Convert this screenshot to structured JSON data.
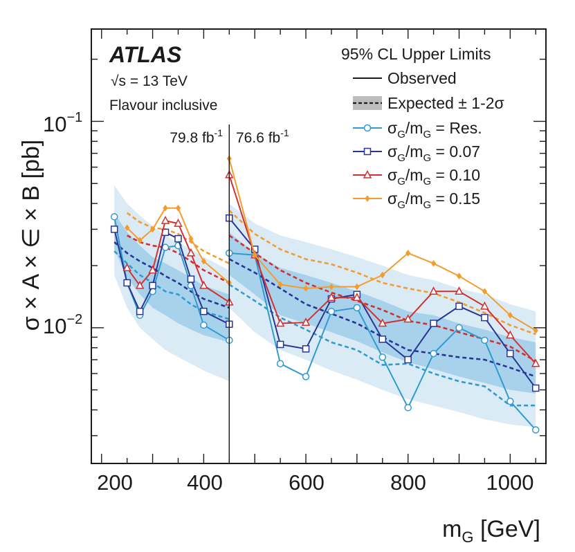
{
  "chart_data": {
    "type": "line",
    "title": "",
    "experiment": "ATLAS",
    "energy": "√s = 13 TeV",
    "selection": "Flavour inclusive",
    "xlabel": "m_G [GeV]",
    "ylabel": "σ × A × ∈ × B [pb]",
    "xlim": [
      180,
      1070
    ],
    "ylim": [
      0.0022,
      0.28
    ],
    "yscale": "log",
    "x_ticks": [
      200,
      400,
      600,
      800,
      1000
    ],
    "y_ticks": [
      {
        "value": 0.1,
        "base": "10",
        "exp": "−1"
      },
      {
        "value": 0.01,
        "base": "10",
        "exp": "−2"
      }
    ],
    "luminosity_boundary": 450,
    "lumi_left": {
      "value": "79.8 fb",
      "unit_exp": "-1"
    },
    "lumi_right": {
      "value": "76.6 fb",
      "unit_exp": "-1"
    },
    "legend": {
      "header": "95% CL Upper Limits",
      "entries": [
        {
          "id": "observed",
          "label": "Observed"
        },
        {
          "id": "expected",
          "label": "Expected ± 1-2σ"
        },
        {
          "id": "res",
          "sym": "σ",
          "sub1": "G",
          "mid": "/m",
          "sub2": "G",
          "rest": " = Res."
        },
        {
          "id": "w07",
          "sym": "σ",
          "sub1": "G",
          "mid": "/m",
          "sub2": "G",
          "rest": " = 0.07"
        },
        {
          "id": "w10",
          "sym": "σ",
          "sub1": "G",
          "mid": "/m",
          "sub2": "G",
          "rest": " = 0.10"
        },
        {
          "id": "w15",
          "sym": "σ",
          "sub1": "G",
          "mid": "/m",
          "sub2": "G",
          "rest": " = 0.15"
        }
      ]
    },
    "bands": {
      "low_x": [
        225,
        250,
        275,
        300,
        325,
        350,
        375,
        400,
        450
      ],
      "high_x": [
        450,
        500,
        550,
        600,
        650,
        700,
        750,
        800,
        850,
        900,
        950,
        1000,
        1050
      ],
      "sigma2_color": "#daebf6",
      "sigma1_color": "#a8d2eb",
      "low_sigma2_up": [
        0.049,
        0.04,
        0.035,
        0.031,
        0.028,
        0.026,
        0.024,
        0.022,
        0.019
      ],
      "low_sigma1_up": [
        0.036,
        0.029,
        0.025,
        0.022,
        0.0205,
        0.019,
        0.0175,
        0.016,
        0.0145
      ],
      "low_sigma1_dn": [
        0.024,
        0.0175,
        0.0145,
        0.0125,
        0.0115,
        0.0105,
        0.0098,
        0.0092,
        0.0085
      ],
      "low_sigma2_dn": [
        0.018,
        0.0125,
        0.01,
        0.0088,
        0.0078,
        0.0072,
        0.0067,
        0.0062,
        0.0055
      ],
      "high_sigma2_up": [
        0.04,
        0.032,
        0.028,
        0.026,
        0.024,
        0.022,
        0.02,
        0.018,
        0.017,
        0.0155,
        0.0145,
        0.013,
        0.012
      ],
      "high_sigma1_up": [
        0.029,
        0.023,
        0.0195,
        0.018,
        0.0165,
        0.015,
        0.0135,
        0.012,
        0.0115,
        0.0105,
        0.0098,
        0.009,
        0.0085
      ],
      "high_sigma1_dn": [
        0.018,
        0.0145,
        0.0115,
        0.0105,
        0.0095,
        0.0086,
        0.0076,
        0.0068,
        0.0063,
        0.0058,
        0.0054,
        0.005,
        0.0048
      ],
      "high_sigma2_dn": [
        0.0125,
        0.0095,
        0.0078,
        0.007,
        0.0062,
        0.0056,
        0.005,
        0.0045,
        0.0042,
        0.0039,
        0.0036,
        0.0034,
        0.0033
      ]
    },
    "series": [
      {
        "id": "res",
        "name": "σG/mG = Res.",
        "color": "#2f9bcf",
        "marker": "circle",
        "obs_low_x": [
          225,
          250,
          275,
          300,
          325,
          350,
          375,
          400,
          450
        ],
        "obs_low_y": [
          0.0345,
          0.0165,
          0.0115,
          0.015,
          0.0245,
          0.025,
          0.016,
          0.0103,
          0.0087
        ],
        "obs_high_x": [
          450,
          500,
          550,
          600,
          650,
          700,
          750,
          800,
          850,
          900,
          950,
          1000,
          1050
        ],
        "obs_high_y": [
          0.023,
          0.0225,
          0.0067,
          0.0058,
          0.012,
          0.0125,
          0.0072,
          0.0041,
          0.0075,
          0.01,
          0.0087,
          0.0044,
          0.0032
        ],
        "exp_low_x": [
          225,
          250,
          275,
          300,
          325,
          350,
          375,
          400,
          450
        ],
        "exp_low_y": [
          0.0235,
          0.0205,
          0.018,
          0.0165,
          0.015,
          0.0145,
          0.013,
          0.012,
          0.011
        ],
        "exp_high_x": [
          450,
          500,
          550,
          600,
          650,
          700,
          750,
          800,
          850,
          900,
          950,
          1000,
          1050
        ],
        "exp_high_y": [
          0.0162,
          0.0135,
          0.0112,
          0.0098,
          0.0085,
          0.0078,
          0.0066,
          0.0067,
          0.006,
          0.0055,
          0.0052,
          0.0042,
          0.0042
        ]
      },
      {
        "id": "w07",
        "name": "σG/mG = 0.07",
        "color": "#283593",
        "marker": "square",
        "obs_low_x": [
          225,
          250,
          275,
          300,
          325,
          350,
          375,
          400,
          450
        ],
        "obs_low_y": [
          0.03,
          0.0165,
          0.012,
          0.016,
          0.029,
          0.027,
          0.0172,
          0.012,
          0.0104
        ],
        "obs_high_x": [
          450,
          500,
          550,
          600,
          650,
          700,
          750,
          800,
          850,
          900,
          950,
          1000,
          1050
        ],
        "obs_high_y": [
          0.034,
          0.024,
          0.0083,
          0.0079,
          0.0138,
          0.0145,
          0.0088,
          0.007,
          0.0105,
          0.0127,
          0.0112,
          0.0075,
          0.0051
        ],
        "exp_low_x": [
          225,
          250,
          275,
          300,
          325,
          350,
          375,
          400,
          450
        ],
        "exp_low_y": [
          0.026,
          0.023,
          0.021,
          0.0195,
          0.0178,
          0.0165,
          0.015,
          0.0138,
          0.0125
        ],
        "exp_high_x": [
          450,
          500,
          550,
          600,
          650,
          700,
          750,
          800,
          850,
          900,
          950,
          1000,
          1050
        ],
        "exp_high_y": [
          0.0215,
          0.0185,
          0.0155,
          0.013,
          0.0117,
          0.0105,
          0.009,
          0.0078,
          0.0075,
          0.0072,
          0.007,
          0.0064,
          0.0058
        ]
      },
      {
        "id": "w10",
        "name": "σG/mG = 0.10",
        "color": "#d32f2f",
        "marker": "triangle",
        "obs_low_x": [
          250,
          275,
          300,
          325,
          350,
          375,
          400,
          450
        ],
        "obs_low_y": [
          0.0195,
          0.016,
          0.019,
          0.033,
          0.032,
          0.023,
          0.016,
          0.0133
        ],
        "obs_high_x": [
          450,
          500,
          550,
          600,
          650,
          700,
          750,
          800,
          850,
          900,
          950,
          1000,
          1050
        ],
        "obs_high_y": [
          0.055,
          0.0225,
          0.0105,
          0.0106,
          0.014,
          0.014,
          0.0105,
          0.011,
          0.015,
          0.015,
          0.0127,
          0.0092,
          0.0067
        ],
        "exp_low_x": [
          250,
          275,
          300,
          325,
          350,
          375,
          400,
          450
        ],
        "exp_low_y": [
          0.028,
          0.026,
          0.025,
          0.0245,
          0.023,
          0.021,
          0.019,
          0.0165
        ],
        "exp_high_x": [
          450,
          500,
          550,
          600,
          650,
          700,
          750,
          800,
          850,
          900,
          950,
          1000,
          1050
        ],
        "exp_high_y": [
          0.028,
          0.023,
          0.019,
          0.0165,
          0.0148,
          0.0135,
          0.0122,
          0.0108,
          0.0103,
          0.0095,
          0.0088,
          0.0081,
          0.0069
        ]
      },
      {
        "id": "w15",
        "name": "σG/mG = 0.15",
        "color": "#f39c2d",
        "marker": "diamond",
        "obs_low_x": [
          250,
          275,
          300,
          325,
          350,
          375,
          400,
          450
        ],
        "obs_low_y": [
          0.0305,
          0.0265,
          0.03,
          0.038,
          0.038,
          0.027,
          0.021,
          0.0165
        ],
        "obs_high_x": [
          450,
          500,
          550,
          600,
          650,
          700,
          750,
          800,
          850,
          900,
          950,
          1000,
          1050
        ],
        "obs_high_y": [
          0.066,
          0.0225,
          0.0162,
          0.0155,
          0.0158,
          0.0158,
          0.018,
          0.023,
          0.0205,
          0.0178,
          0.015,
          0.0115,
          0.0097
        ],
        "exp_low_x": [
          250,
          275,
          300,
          325,
          350,
          375,
          400,
          450
        ],
        "exp_low_y": [
          0.036,
          0.0325,
          0.0305,
          0.03,
          0.0285,
          0.026,
          0.0235,
          0.0205
        ],
        "exp_high_x": [
          450,
          500,
          550,
          600,
          650,
          700,
          750,
          800,
          850,
          900,
          950,
          1000,
          1050
        ],
        "exp_high_y": [
          0.037,
          0.0285,
          0.024,
          0.0215,
          0.0203,
          0.0185,
          0.0165,
          0.0155,
          0.0147,
          0.0133,
          0.0118,
          0.0103,
          0.0093
        ]
      }
    ]
  }
}
